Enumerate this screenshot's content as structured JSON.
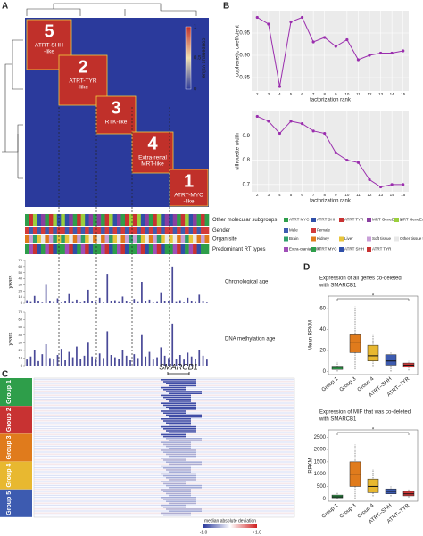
{
  "panel_labels": [
    "A",
    "B",
    "C",
    "D"
  ],
  "panel_a": {
    "clusters": [
      {
        "number": "5",
        "label_lines": [
          "ATRT-SHH",
          "-like"
        ]
      },
      {
        "number": "2",
        "label_lines": [
          "ATRT-TYR",
          "-like"
        ]
      },
      {
        "number": "3",
        "label_lines": [
          "RTK-like"
        ]
      },
      {
        "number": "4",
        "label_lines": [
          "Extra-renal",
          "MRT-like"
        ]
      },
      {
        "number": "1",
        "label_lines": [
          "ATRT-MYC",
          "-like"
        ]
      }
    ],
    "colorbar_title": "consensus value",
    "colorbar_ticks": [
      1,
      0.5,
      0
    ],
    "annotation_rows": [
      {
        "label": "Other molecular subgroups",
        "legend": [
          "ATRT MYC",
          "ATRT SHH",
          "ATRT TYR",
          "MRT GeneExp 1",
          "MRT GeneExp 2"
        ],
        "colors": [
          "#2e9e4a",
          "#2f4fa8",
          "#c83232",
          "#8a3fa0",
          "#9bcf3c"
        ]
      },
      {
        "label": "Gender",
        "legend": [
          "Male",
          "Female"
        ],
        "colors": [
          "#3d5bb0",
          "#d23a3a"
        ]
      },
      {
        "label": "Organ site",
        "legend": [
          "Brain",
          "Kidney",
          "Liver",
          "Soft tissue",
          "Other tissue types"
        ],
        "colors": [
          "#2ea06a",
          "#e07b1c",
          "#e8c53a",
          "#c9a0d8",
          "#e8e8e8"
        ]
      },
      {
        "label": "Predominant RT types",
        "legend": [
          "Extra-cranial MRT",
          "ATRT MYC",
          "ATRT SHH",
          "ATRT TYR"
        ],
        "colors": [
          "#a04fb8",
          "#2e9e4a",
          "#2f4fa8",
          "#c83232"
        ]
      }
    ]
  },
  "panel_c": {
    "gene": "SMARCB1",
    "groups": [
      "Group 1",
      "Group 2",
      "Group 3",
      "Group 4",
      "Group 5"
    ],
    "group_colors": [
      "#2e9e4a",
      "#c83232",
      "#e07b1c",
      "#e8b830",
      "#3d5bb0"
    ],
    "legend_title": "median absolute deviation",
    "legend_ticks": [
      {
        "value": -1,
        "label": "-1.0"
      },
      {
        "value": 1,
        "label": "+1.0"
      }
    ]
  },
  "chart_data": [
    {
      "type": "line",
      "ylabel": "cophenetic coefficient",
      "xlabel": "factorization rank",
      "x": [
        2,
        3,
        4,
        5,
        6,
        7,
        8,
        9,
        10,
        11,
        12,
        13,
        14,
        15
      ],
      "values": [
        0.985,
        0.97,
        0.83,
        0.975,
        0.985,
        0.93,
        0.94,
        0.92,
        0.935,
        0.89,
        0.9,
        0.905,
        0.905,
        0.91
      ],
      "xlim": [
        1.5,
        15.5
      ],
      "xticks": [
        2,
        3,
        4,
        5,
        6,
        7,
        8,
        9,
        10,
        11,
        12,
        13,
        14,
        15
      ],
      "ylim": [
        0.82,
        1.0
      ],
      "yticks": [
        0.85,
        {
          "value": 0.9,
          "label": "0.90"
        },
        0.95
      ],
      "color": "#9b2fae"
    },
    {
      "type": "line",
      "ylabel": "silhouette width",
      "xlabel": "factorization rank",
      "x": [
        2,
        3,
        4,
        5,
        6,
        7,
        8,
        9,
        10,
        11,
        12,
        13,
        14,
        15
      ],
      "values": [
        0.98,
        0.96,
        0.91,
        0.96,
        0.95,
        0.92,
        0.91,
        0.83,
        0.8,
        0.79,
        0.72,
        0.69,
        0.7,
        0.7
      ],
      "xlim": [
        1.5,
        15.5
      ],
      "xticks": [
        2,
        3,
        4,
        5,
        6,
        7,
        8,
        9,
        10,
        11,
        12,
        13,
        14,
        15
      ],
      "ylim": [
        0.67,
        1.0
      ],
      "yticks": [
        0.7,
        0.8,
        0.9
      ],
      "color": "#9b2fae"
    },
    {
      "type": "bar",
      "annotation": "Chronological age",
      "ylabel": "years",
      "values": [
        5,
        2,
        12,
        3,
        1,
        30,
        4,
        2,
        8,
        1,
        3,
        15,
        2,
        6,
        1,
        4,
        22,
        3,
        2,
        9,
        1,
        48,
        3,
        5,
        2,
        11,
        4,
        1,
        7,
        2,
        35,
        3,
        6,
        1,
        2,
        18,
        4,
        3,
        60,
        2,
        5,
        1,
        9,
        3,
        2,
        14,
        4,
        1
      ],
      "ylim": [
        0,
        70
      ],
      "yticks": [
        0,
        10,
        20,
        30,
        40,
        50,
        60,
        70
      ],
      "color": "#4a4a98"
    },
    {
      "type": "bar",
      "annotation": "DNA methylation age",
      "ylabel": "years",
      "values": [
        8,
        12,
        20,
        6,
        15,
        28,
        10,
        9,
        14,
        22,
        7,
        18,
        11,
        25,
        9,
        13,
        30,
        12,
        8,
        16,
        10,
        45,
        14,
        11,
        9,
        20,
        13,
        7,
        15,
        10,
        40,
        12,
        18,
        8,
        11,
        24,
        13,
        10,
        55,
        9,
        14,
        8,
        17,
        12,
        9,
        21,
        13,
        8
      ],
      "ylim": [
        0,
        70
      ],
      "yticks": [
        0,
        10,
        20,
        30,
        40,
        50,
        60,
        70
      ],
      "color": "#4a4a98"
    },
    {
      "type": "box",
      "title_lines": [
        "Expression of all genes co-deleted",
        "with SMARCB1"
      ],
      "ylabel": "Mean RPKM",
      "categories": [
        "Group 1",
        "Group 3",
        "Group 4",
        "ATRT–SHH",
        "ATRT–TYR"
      ],
      "colors": [
        "#2e9e4a",
        "#e07b1c",
        "#e8b830",
        "#3d5bb0",
        "#d23a3a"
      ],
      "min": [
        0,
        2,
        5,
        0,
        1
      ],
      "q1": [
        2,
        18,
        10,
        6,
        4
      ],
      "median": [
        4,
        28,
        15,
        10,
        6
      ],
      "q3": [
        5,
        35,
        25,
        16,
        8
      ],
      "max": [
        9,
        62,
        35,
        18,
        10
      ],
      "significance": "*",
      "ylim": [
        -3,
        72
      ],
      "yticks": [
        0,
        20,
        40,
        60
      ]
    },
    {
      "type": "box",
      "title_lines": [
        "Expression of MIF that was co-deleted",
        "with SMARCB1"
      ],
      "ylabel": "RPKM",
      "categories": [
        "Group 1",
        "Group 3",
        "Group 4",
        "ATRT–SHH",
        "ATRT–TYR"
      ],
      "colors": [
        "#2e9e4a",
        "#e07b1c",
        "#e8b830",
        "#3d5bb0",
        "#d23a3a"
      ],
      "min": [
        0,
        0,
        100,
        100,
        50
      ],
      "q1": [
        40,
        500,
        250,
        200,
        120
      ],
      "median": [
        80,
        1000,
        500,
        300,
        200
      ],
      "q3": [
        150,
        1500,
        800,
        400,
        300
      ],
      "max": [
        250,
        2200,
        1200,
        500,
        400
      ],
      "significance": "*",
      "ylim": [
        -100,
        2800
      ],
      "yticks": [
        0,
        500,
        1000,
        1500,
        2000,
        2500
      ]
    }
  ]
}
